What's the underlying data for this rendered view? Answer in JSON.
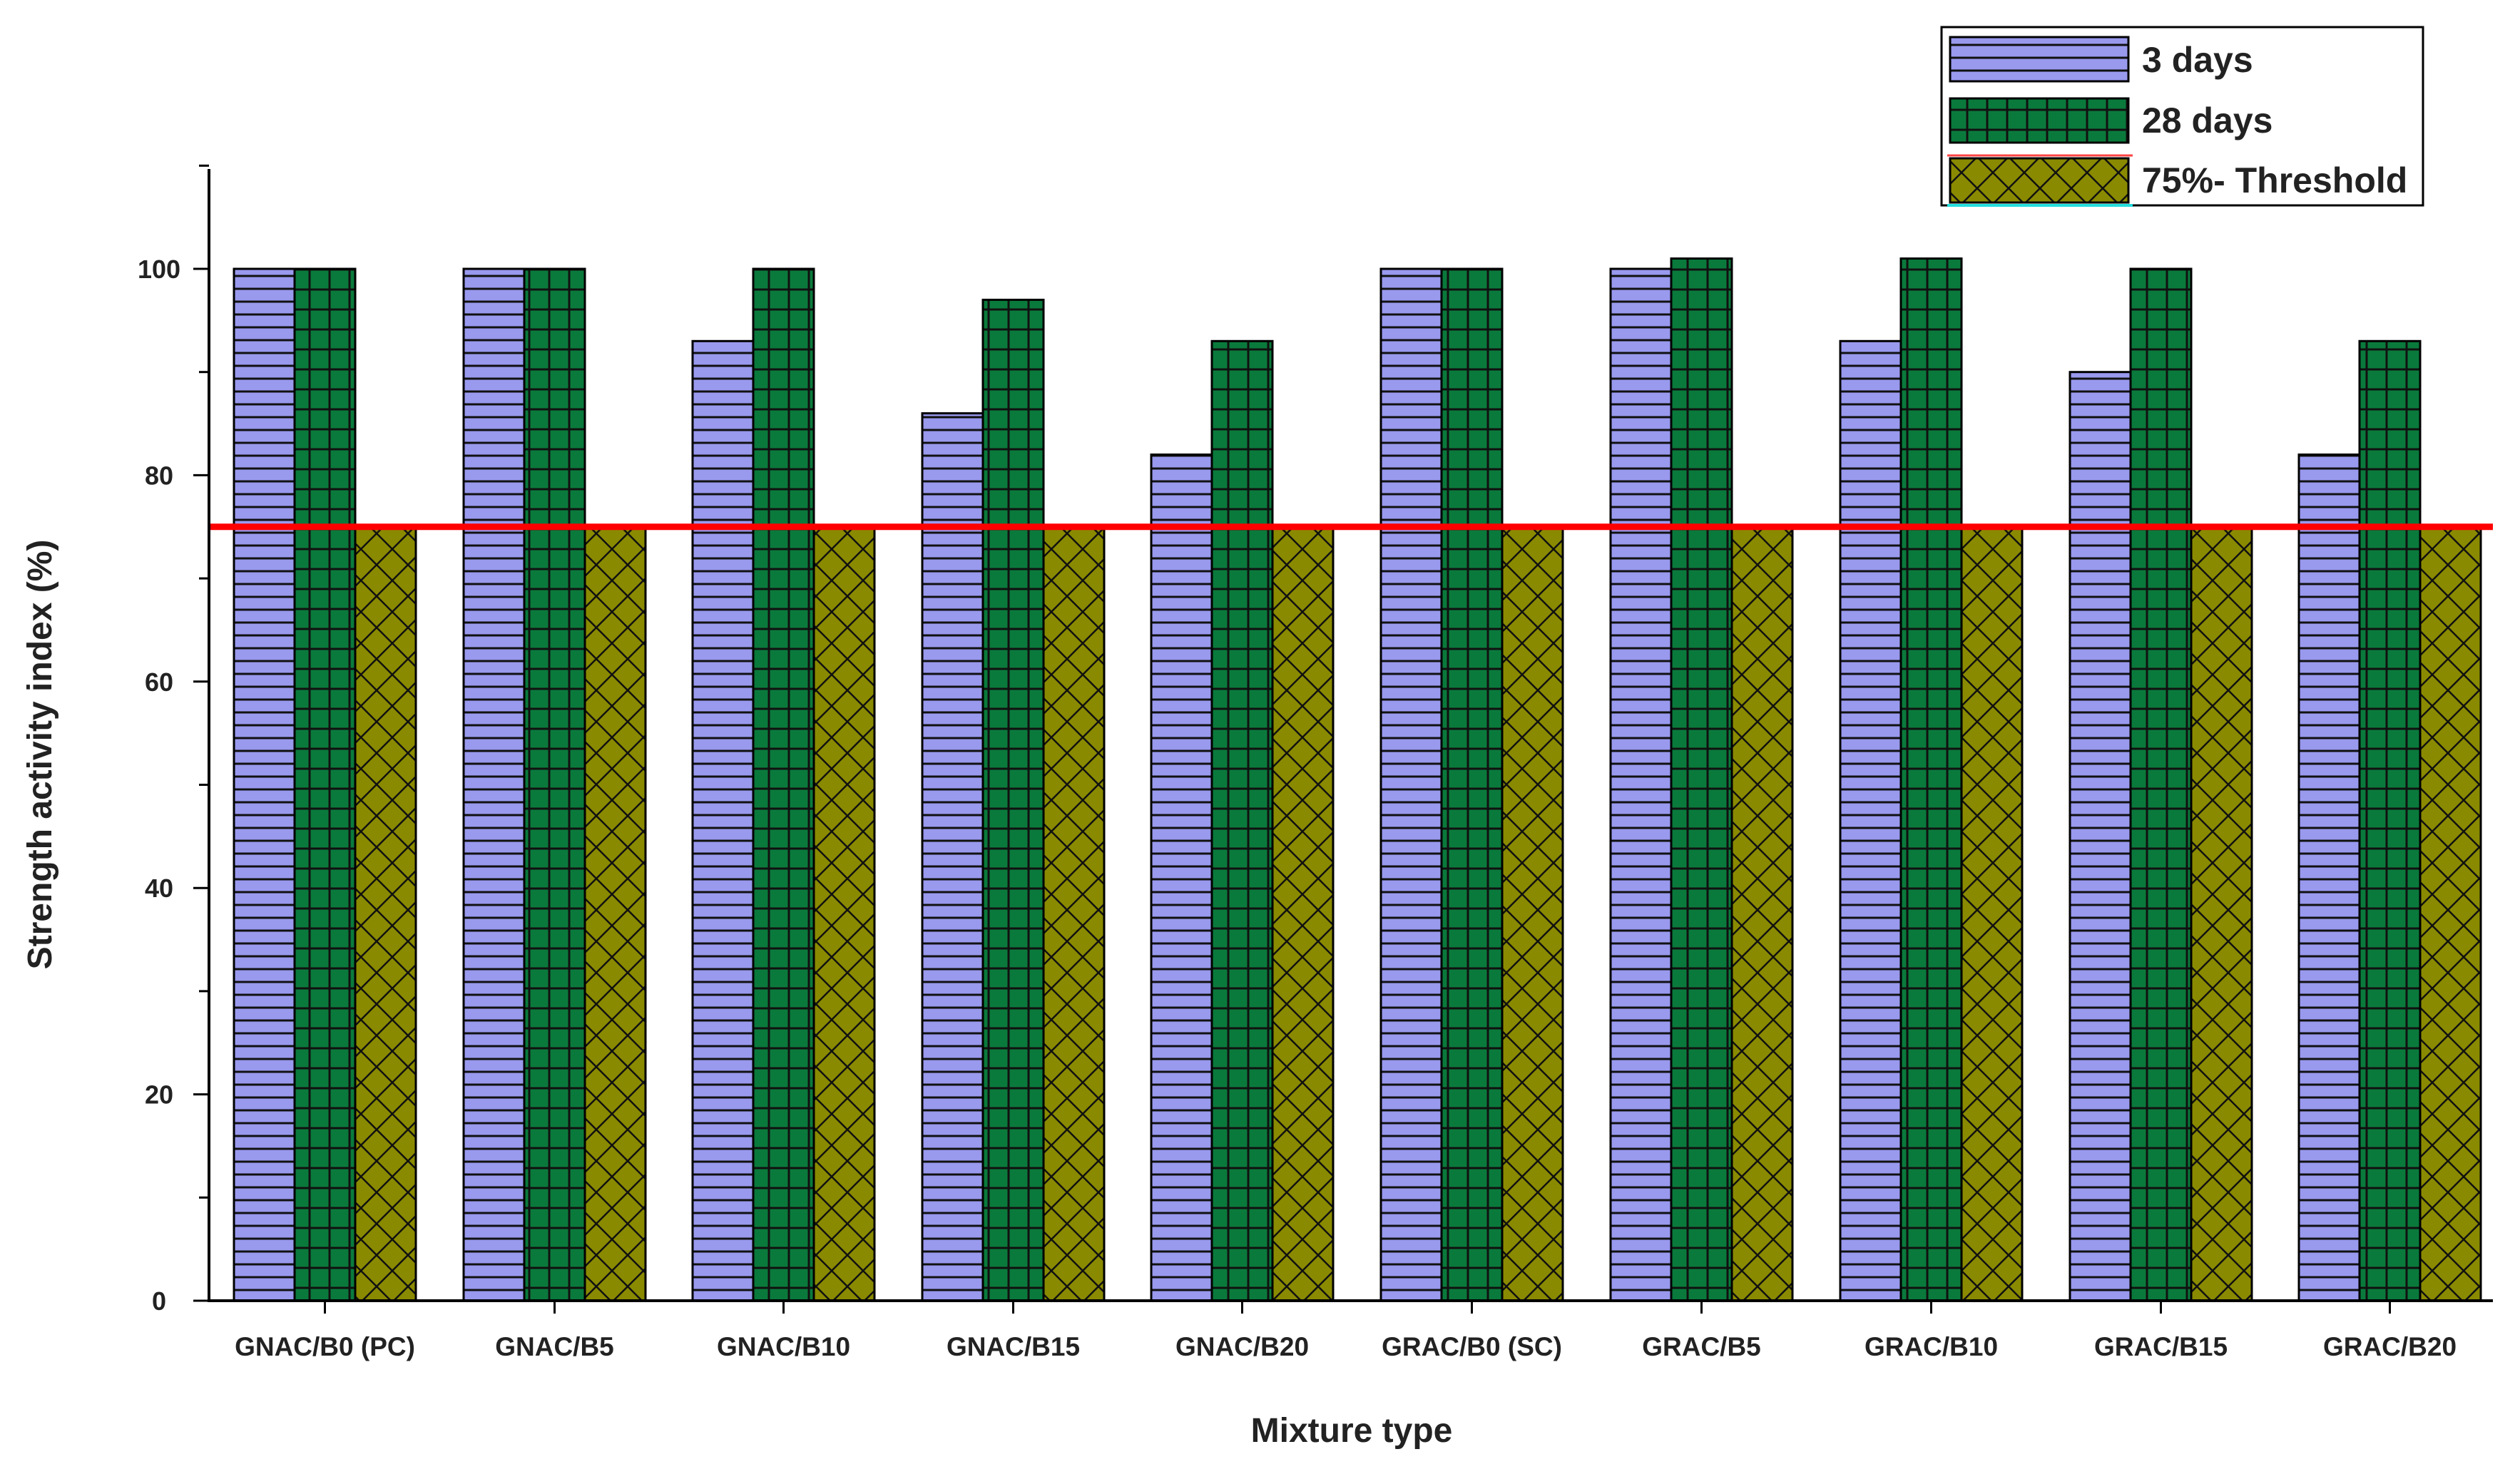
{
  "chart_data": {
    "type": "bar",
    "title": "",
    "xlabel": "Mixture type",
    "ylabel": "Strength activity index (%)",
    "ylim": [
      0,
      110
    ],
    "yticks": [
      0,
      20,
      40,
      60,
      80,
      100
    ],
    "grid": false,
    "legend_position": "top-right",
    "categories": [
      "GNAC/B0 (PC)",
      "GNAC/B5",
      "GNAC/B10",
      "GNAC/B15",
      "GNAC/B20",
      "GRAC/B0 (SC)",
      "GRAC/B5",
      "GRAC/B10",
      "GRAC/B15",
      "GRAC/B20"
    ],
    "series": [
      {
        "name": "3 days",
        "values": [
          100,
          100,
          93,
          86,
          82,
          100,
          100,
          93,
          90,
          82
        ],
        "color": "#9999ee",
        "pattern": "horizontal-lines"
      },
      {
        "name": "28 days",
        "values": [
          100,
          100,
          100,
          97,
          93,
          100,
          101,
          101,
          100,
          93
        ],
        "color": "#0a7a3c",
        "pattern": "grid"
      },
      {
        "name": "75%- Threshold",
        "values": [
          75,
          75,
          75,
          75,
          75,
          75,
          75,
          75,
          75,
          75
        ],
        "color": "#8a8a00",
        "pattern": "crosshatch"
      }
    ],
    "reference_line": {
      "value": 75,
      "color": "#ff0000"
    }
  }
}
